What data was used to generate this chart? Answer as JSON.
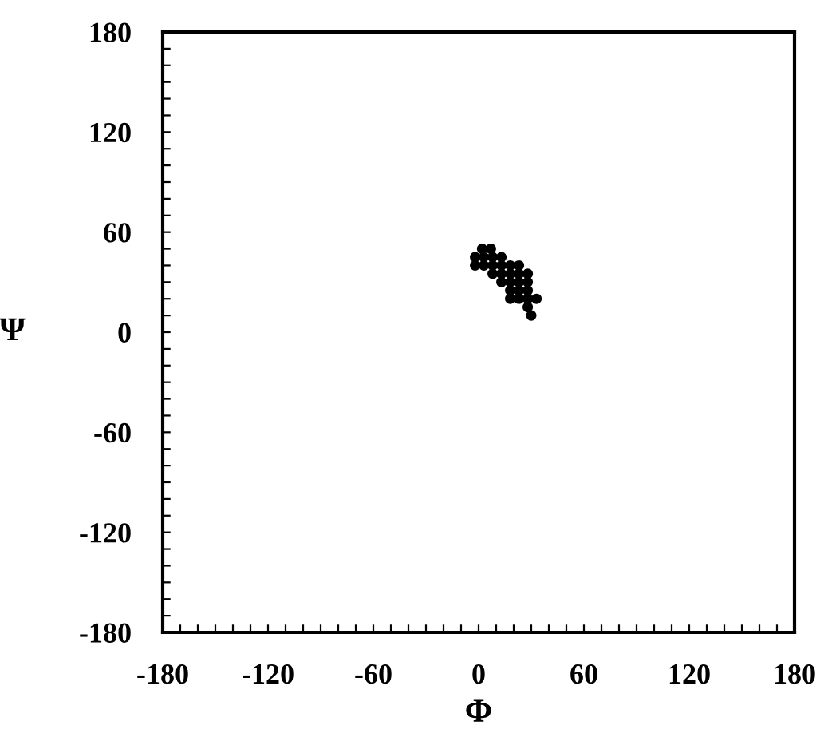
{
  "chart_data": {
    "type": "scatter",
    "xlabel": "Φ",
    "ylabel": "Ψ",
    "color": "#000000",
    "marker": "circle",
    "grid": false,
    "x": [
      2,
      7,
      -2,
      3,
      8,
      13,
      -2,
      3,
      8,
      13,
      18,
      23,
      8,
      13,
      18,
      23,
      28,
      13,
      18,
      23,
      28,
      18,
      23,
      28,
      18,
      23,
      28,
      33,
      28,
      30
    ],
    "values": [
      50,
      50,
      45,
      45,
      45,
      45,
      40,
      40,
      40,
      40,
      40,
      40,
      35,
      35,
      35,
      35,
      35,
      30,
      30,
      30,
      30,
      25,
      25,
      25,
      20,
      20,
      20,
      20,
      15,
      10
    ],
    "xlim": [
      -180,
      180
    ],
    "ylim": [
      -180,
      180
    ],
    "xticks": [
      -180,
      {
        "value": -170,
        "label": null
      },
      {
        "value": -160,
        "label": null
      },
      {
        "value": -150,
        "label": null
      },
      {
        "value": -140,
        "label": null
      },
      {
        "value": -130,
        "label": null
      },
      -120,
      {
        "value": -110,
        "label": null
      },
      {
        "value": -100,
        "label": null
      },
      {
        "value": -90,
        "label": null
      },
      {
        "value": -80,
        "label": null
      },
      {
        "value": -70,
        "label": null
      },
      -60,
      {
        "value": -50,
        "label": null
      },
      {
        "value": -40,
        "label": null
      },
      {
        "value": -30,
        "label": null
      },
      {
        "value": -20,
        "label": null
      },
      {
        "value": -10,
        "label": null
      },
      0,
      {
        "value": 10,
        "label": null
      },
      {
        "value": 20,
        "label": null
      },
      {
        "value": 30,
        "label": null
      },
      {
        "value": 40,
        "label": null
      },
      {
        "value": 50,
        "label": null
      },
      60,
      {
        "value": 70,
        "label": null
      },
      {
        "value": 80,
        "label": null
      },
      {
        "value": 90,
        "label": null
      },
      {
        "value": 100,
        "label": null
      },
      {
        "value": 110,
        "label": null
      },
      120,
      {
        "value": 130,
        "label": null
      },
      {
        "value": 140,
        "label": null
      },
      {
        "value": 150,
        "label": null
      },
      {
        "value": 160,
        "label": null
      },
      {
        "value": 170,
        "label": null
      },
      180
    ],
    "yticks": [
      -180,
      {
        "value": -170,
        "label": null
      },
      {
        "value": -160,
        "label": null
      },
      {
        "value": -150,
        "label": null
      },
      {
        "value": -140,
        "label": null
      },
      {
        "value": -130,
        "label": null
      },
      -120,
      {
        "value": -110,
        "label": null
      },
      {
        "value": -100,
        "label": null
      },
      {
        "value": -90,
        "label": null
      },
      {
        "value": -80,
        "label": null
      },
      {
        "value": -70,
        "label": null
      },
      -60,
      {
        "value": -50,
        "label": null
      },
      {
        "value": -40,
        "label": null
      },
      {
        "value": -30,
        "label": null
      },
      {
        "value": -20,
        "label": null
      },
      {
        "value": -10,
        "label": null
      },
      0,
      {
        "value": 10,
        "label": null
      },
      {
        "value": 20,
        "label": null
      },
      {
        "value": 30,
        "label": null
      },
      {
        "value": 40,
        "label": null
      },
      {
        "value": 50,
        "label": null
      },
      60,
      {
        "value": 70,
        "label": null
      },
      {
        "value": 80,
        "label": null
      },
      {
        "value": 90,
        "label": null
      },
      {
        "value": 100,
        "label": null
      },
      {
        "value": 110,
        "label": null
      },
      120,
      {
        "value": 130,
        "label": null
      },
      {
        "value": 140,
        "label": null
      },
      {
        "value": 150,
        "label": null
      },
      {
        "value": 160,
        "label": null
      },
      {
        "value": 170,
        "label": null
      },
      180
    ]
  }
}
